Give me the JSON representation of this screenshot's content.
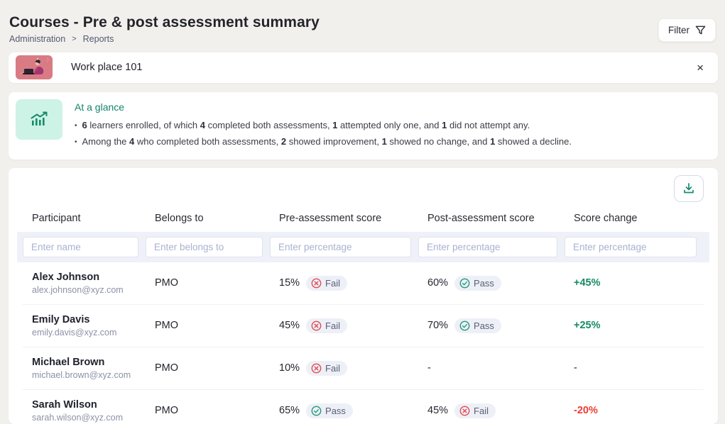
{
  "colors": {
    "accent_teal": "#178a6d",
    "pass_green": "#21997a",
    "fail_red": "#e14b52",
    "positive_green": "#178a66",
    "negative_red": "#ee3b33",
    "thumbnail_pink": "#d97b83",
    "glance_tile_mint": "#cdf3e6"
  },
  "header": {
    "title": "Courses - Pre & post assessment summary",
    "breadcrumb": [
      "Administration",
      "Reports"
    ],
    "breadcrumb_separator": ">",
    "filter_button": "Filter"
  },
  "course_banner": {
    "title": "Work place 101",
    "close_icon": "×"
  },
  "glance": {
    "heading": "At a glance",
    "bullets": [
      {
        "segments": [
          {
            "text": "6",
            "bold": true
          },
          {
            "text": " learners enrolled, of which ",
            "bold": false
          },
          {
            "text": "4",
            "bold": true
          },
          {
            "text": " completed both assessments, ",
            "bold": false
          },
          {
            "text": "1",
            "bold": true
          },
          {
            "text": " attempted only one, and ",
            "bold": false
          },
          {
            "text": "1",
            "bold": true
          },
          {
            "text": " did not attempt any.",
            "bold": false
          }
        ]
      },
      {
        "segments": [
          {
            "text": "Among the ",
            "bold": false
          },
          {
            "text": "4",
            "bold": true
          },
          {
            "text": " who completed both assessments, ",
            "bold": false
          },
          {
            "text": "2",
            "bold": true
          },
          {
            "text": " showed improvement, ",
            "bold": false
          },
          {
            "text": "1",
            "bold": true
          },
          {
            "text": " showed no change, and ",
            "bold": false
          },
          {
            "text": "1",
            "bold": true
          },
          {
            "text": " showed a decline.",
            "bold": false
          }
        ]
      }
    ]
  },
  "table": {
    "headers": [
      "Participant",
      "Belongs to",
      "Pre-assessment score",
      "Post-assessment score",
      "Score change"
    ],
    "filter_placeholders": [
      "Enter name",
      "Enter belongs to",
      "Enter percentage",
      "Enter percentage",
      "Enter percentage"
    ],
    "empty_value": "-",
    "rows": [
      {
        "name": "Alex Johnson",
        "email": "alex.johnson@xyz.com",
        "belongs_to": "PMO",
        "pre": {
          "score": "15%",
          "status": "fail",
          "status_label": "Fail"
        },
        "post": {
          "score": "60%",
          "status": "pass",
          "status_label": "Pass"
        },
        "change": {
          "text": "+45%",
          "direction": "up"
        }
      },
      {
        "name": "Emily Davis",
        "email": "emily.davis@xyz.com",
        "belongs_to": "PMO",
        "pre": {
          "score": "45%",
          "status": "fail",
          "status_label": "Fail"
        },
        "post": {
          "score": "70%",
          "status": "pass",
          "status_label": "Pass"
        },
        "change": {
          "text": "+25%",
          "direction": "up"
        }
      },
      {
        "name": "Michael Brown",
        "email": "michael.brown@xyz.com",
        "belongs_to": "PMO",
        "pre": {
          "score": "10%",
          "status": "fail",
          "status_label": "Fail"
        },
        "post": null,
        "change": {
          "text": "-",
          "direction": "none"
        }
      },
      {
        "name": "Sarah Wilson",
        "email": "sarah.wilson@xyz.com",
        "belongs_to": "PMO",
        "pre": {
          "score": "65%",
          "status": "pass",
          "status_label": "Pass"
        },
        "post": {
          "score": "45%",
          "status": "fail",
          "status_label": "Fail"
        },
        "change": {
          "text": "-20%",
          "direction": "down"
        }
      }
    ]
  }
}
